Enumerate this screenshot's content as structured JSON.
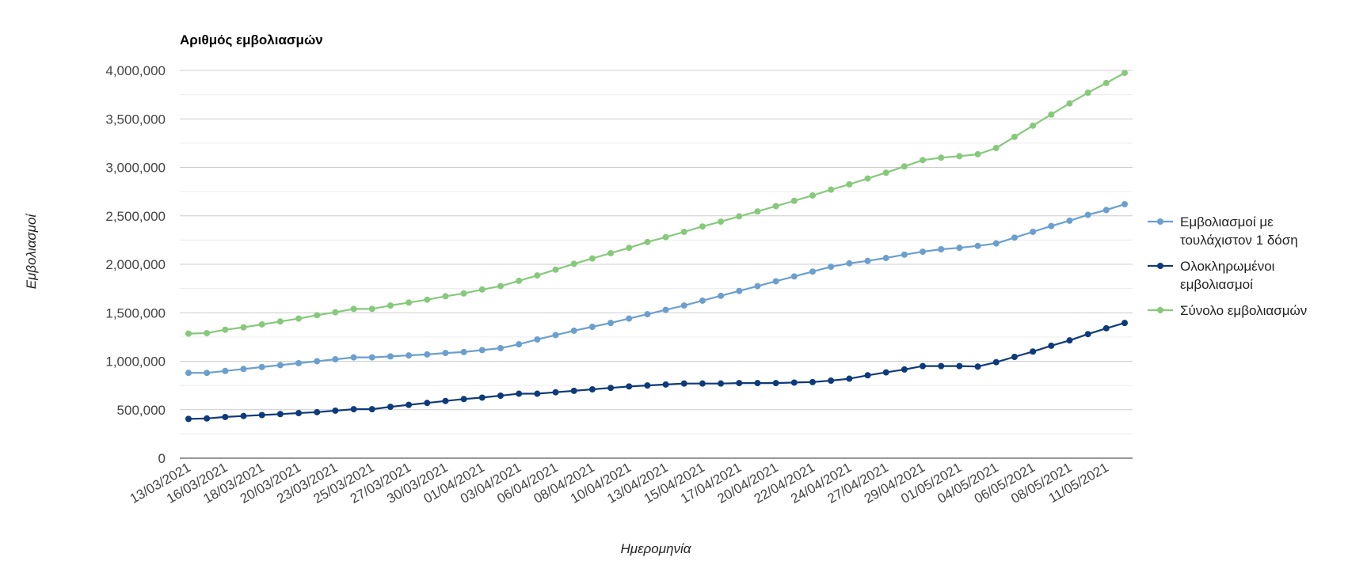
{
  "chart_data": {
    "type": "line",
    "title": "Αριθμός εμβολιασμών",
    "xlabel": "Ημερομηνία",
    "ylabel": "Εμβολιασμοί",
    "ylim": [
      0,
      4000000
    ],
    "y_ticks": [
      0,
      500000,
      1000000,
      1500000,
      2000000,
      2500000,
      3000000,
      3500000,
      4000000
    ],
    "y_tick_labels": [
      "0",
      "500,000",
      "1,000,000",
      "1,500,000",
      "2,000,000",
      "2,500,000",
      "3,000,000",
      "3,500,000",
      "4,000,000"
    ],
    "grid": true,
    "legend_position": "right",
    "x": [
      "13/03/2021",
      "14/03/2021",
      "16/03/2021",
      "17/03/2021",
      "18/03/2021",
      "19/03/2021",
      "20/03/2021",
      "22/03/2021",
      "23/03/2021",
      "24/03/2021",
      "25/03/2021",
      "26/03/2021",
      "27/03/2021",
      "29/03/2021",
      "30/03/2021",
      "31/03/2021",
      "01/04/2021",
      "02/04/2021",
      "03/04/2021",
      "05/04/2021",
      "06/04/2021",
      "07/04/2021",
      "08/04/2021",
      "09/04/2021",
      "10/04/2021",
      "12/04/2021",
      "13/04/2021",
      "14/04/2021",
      "15/04/2021",
      "16/04/2021",
      "17/04/2021",
      "19/04/2021",
      "20/04/2021",
      "21/04/2021",
      "22/04/2021",
      "23/04/2021",
      "24/04/2021",
      "26/04/2021",
      "27/04/2021",
      "28/04/2021",
      "29/04/2021",
      "30/04/2021",
      "01/05/2021",
      "03/05/2021",
      "04/05/2021",
      "05/05/2021",
      "06/05/2021",
      "07/05/2021",
      "08/05/2021",
      "10/05/2021",
      "11/05/2021",
      "12/05/2021"
    ],
    "x_tick_labels": [
      "13/03/2021",
      "16/03/2021",
      "18/03/2021",
      "20/03/2021",
      "23/03/2021",
      "25/03/2021",
      "27/03/2021",
      "30/03/2021",
      "01/04/2021",
      "03/04/2021",
      "06/04/2021",
      "08/04/2021",
      "10/04/2021",
      "13/04/2021",
      "15/04/2021",
      "17/04/2021",
      "20/04/2021",
      "22/04/2021",
      "24/04/2021",
      "27/04/2021",
      "29/04/2021",
      "01/05/2021",
      "04/05/2021",
      "06/05/2021",
      "08/05/2021",
      "11/05/2021"
    ],
    "series": [
      {
        "name": "Εμβολιασμοί με τουλάχιστον 1 δόση",
        "color": "#6a9fcf",
        "values": [
          880000,
          880000,
          900000,
          920000,
          940000,
          960000,
          980000,
          1000000,
          1020000,
          1040000,
          1040000,
          1050000,
          1060000,
          1070000,
          1085000,
          1095000,
          1115000,
          1135000,
          1175000,
          1225000,
          1270000,
          1315000,
          1355000,
          1395000,
          1440000,
          1485000,
          1530000,
          1575000,
          1625000,
          1675000,
          1725000,
          1775000,
          1825000,
          1875000,
          1925000,
          1975000,
          2010000,
          2035000,
          2065000,
          2100000,
          2130000,
          2155000,
          2170000,
          2190000,
          2215000,
          2275000,
          2335000,
          2395000,
          2450000,
          2510000,
          2560000,
          2620000
        ]
      },
      {
        "name": "Ολοκληρωμένοι εμβολιασμοί",
        "color": "#0d3a7a",
        "values": [
          405000,
          410000,
          425000,
          435000,
          445000,
          455000,
          465000,
          475000,
          490000,
          505000,
          505000,
          530000,
          550000,
          570000,
          590000,
          610000,
          625000,
          645000,
          665000,
          665000,
          680000,
          695000,
          710000,
          725000,
          740000,
          750000,
          760000,
          770000,
          770000,
          770000,
          775000,
          775000,
          775000,
          780000,
          785000,
          800000,
          820000,
          855000,
          885000,
          915000,
          950000,
          950000,
          950000,
          945000,
          990000,
          1045000,
          1100000,
          1160000,
          1215000,
          1280000,
          1340000,
          1395000
        ]
      },
      {
        "name": "Σύνολο εμβολιασμών",
        "color": "#86c97b",
        "values": [
          1285000,
          1290000,
          1325000,
          1350000,
          1380000,
          1410000,
          1440000,
          1475000,
          1505000,
          1540000,
          1540000,
          1575000,
          1605000,
          1635000,
          1670000,
          1700000,
          1740000,
          1775000,
          1830000,
          1885000,
          1945000,
          2005000,
          2060000,
          2115000,
          2170000,
          2230000,
          2280000,
          2335000,
          2390000,
          2440000,
          2495000,
          2545000,
          2600000,
          2655000,
          2710000,
          2770000,
          2825000,
          2885000,
          2945000,
          3010000,
          3075000,
          3100000,
          3115000,
          3135000,
          3200000,
          3315000,
          3430000,
          3545000,
          3660000,
          3770000,
          3870000,
          3975000
        ]
      }
    ]
  }
}
